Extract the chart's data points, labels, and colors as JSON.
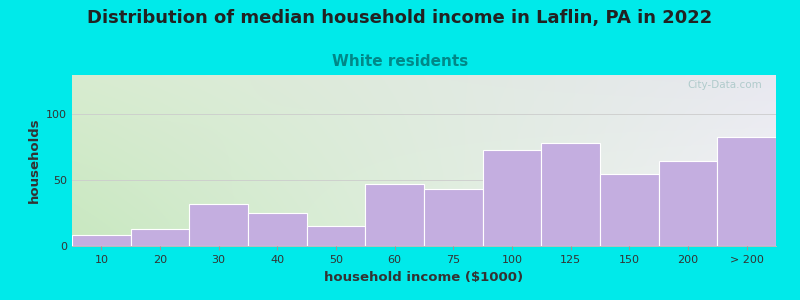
{
  "title": "Distribution of median household income in Laflin, PA in 2022",
  "subtitle": "White residents",
  "xlabel": "household income ($1000)",
  "ylabel": "households",
  "bar_labels": [
    "10",
    "20",
    "30",
    "40",
    "50",
    "60",
    "75",
    "100",
    "125",
    "150",
    "200",
    "> 200"
  ],
  "bar_values": [
    8,
    13,
    32,
    25,
    15,
    47,
    43,
    73,
    78,
    55,
    65,
    83
  ],
  "bar_color": "#c4aee0",
  "bar_edge_color": "#ffffff",
  "ylim": [
    0,
    130
  ],
  "yticks": [
    0,
    50,
    100
  ],
  "background_color": "#00eaea",
  "grad_color_topleft": "#d0ecc8",
  "grad_color_bottomright": "#f0f0f8",
  "title_fontsize": 13,
  "subtitle_fontsize": 11,
  "subtitle_color": "#008888",
  "axis_label_fontsize": 9.5,
  "tick_fontsize": 8,
  "watermark_text": "City-Data.com",
  "watermark_color": "#aac8c8"
}
